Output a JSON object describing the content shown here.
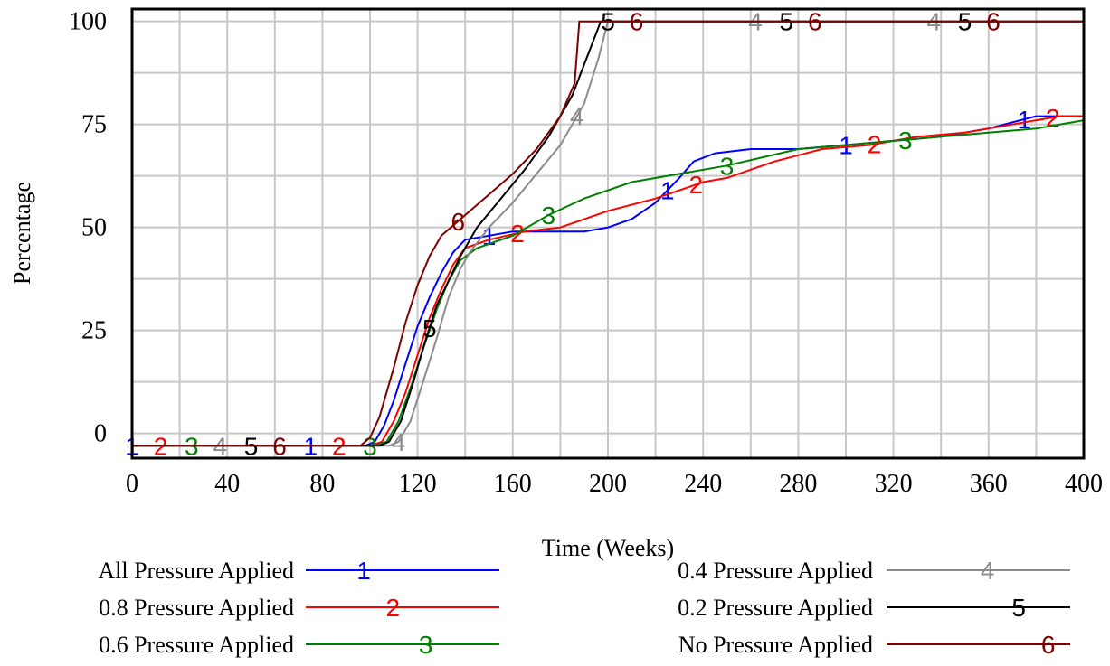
{
  "chart_data": {
    "type": "line",
    "xlabel": "Time (Weeks)",
    "ylabel": "Percentage",
    "xlim": [
      0,
      400
    ],
    "ylim": [
      -6,
      103
    ],
    "x_ticks": [
      0,
      40,
      80,
      120,
      160,
      200,
      240,
      280,
      320,
      360,
      400
    ],
    "y_ticks": [
      0,
      25,
      50,
      75,
      100
    ],
    "x_grid_step": 20,
    "y_grid_step": 12.5,
    "grid": true,
    "legend_position": "bottom",
    "series": [
      {
        "name": "All Pressure Applied",
        "marker": "1",
        "color": "#0000ff",
        "points": [
          [
            0,
            -3
          ],
          [
            98,
            -3
          ],
          [
            102,
            -2
          ],
          [
            106,
            2
          ],
          [
            110,
            8
          ],
          [
            115,
            17
          ],
          [
            120,
            26
          ],
          [
            125,
            33
          ],
          [
            130,
            39
          ],
          [
            135,
            44
          ],
          [
            140,
            47
          ],
          [
            150,
            48
          ],
          [
            160,
            49
          ],
          [
            170,
            49
          ],
          [
            190,
            49
          ],
          [
            200,
            50
          ],
          [
            210,
            52
          ],
          [
            220,
            56
          ],
          [
            230,
            62
          ],
          [
            236,
            66
          ],
          [
            245,
            68
          ],
          [
            260,
            69
          ],
          [
            280,
            69
          ],
          [
            300,
            70
          ],
          [
            320,
            71
          ],
          [
            340,
            72
          ],
          [
            360,
            74
          ],
          [
            380,
            77
          ],
          [
            400,
            77
          ]
        ],
        "marker_x": [
          0,
          75,
          150,
          225,
          300,
          375
        ]
      },
      {
        "name": "0.8 Pressure Applied",
        "marker": "2",
        "color": "#ff0000",
        "points": [
          [
            0,
            -3
          ],
          [
            100,
            -3
          ],
          [
            105,
            -2
          ],
          [
            110,
            3
          ],
          [
            115,
            10
          ],
          [
            120,
            19
          ],
          [
            125,
            28
          ],
          [
            130,
            35
          ],
          [
            135,
            41
          ],
          [
            140,
            45
          ],
          [
            150,
            47
          ],
          [
            165,
            49
          ],
          [
            180,
            50
          ],
          [
            200,
            54
          ],
          [
            220,
            57
          ],
          [
            240,
            61
          ],
          [
            250,
            62
          ],
          [
            270,
            66
          ],
          [
            290,
            69
          ],
          [
            310,
            70
          ],
          [
            330,
            72
          ],
          [
            350,
            73
          ],
          [
            370,
            75
          ],
          [
            390,
            77
          ],
          [
            400,
            77
          ]
        ],
        "marker_x": [
          12,
          87,
          162,
          237,
          312,
          387
        ]
      },
      {
        "name": "0.6 Pressure Applied",
        "marker": "3",
        "color": "#008000",
        "points": [
          [
            0,
            -3
          ],
          [
            102,
            -3
          ],
          [
            107,
            -2
          ],
          [
            112,
            3
          ],
          [
            117,
            11
          ],
          [
            122,
            20
          ],
          [
            128,
            30
          ],
          [
            133,
            37
          ],
          [
            138,
            42
          ],
          [
            145,
            45
          ],
          [
            160,
            48
          ],
          [
            175,
            53
          ],
          [
            190,
            57
          ],
          [
            210,
            61
          ],
          [
            230,
            63
          ],
          [
            250,
            65
          ],
          [
            265,
            67
          ],
          [
            280,
            69
          ],
          [
            300,
            70
          ],
          [
            320,
            71
          ],
          [
            340,
            72
          ],
          [
            360,
            73
          ],
          [
            380,
            74
          ],
          [
            400,
            76
          ]
        ],
        "marker_x": [
          25,
          100,
          175,
          250,
          325
        ]
      },
      {
        "name": "0.4 Pressure Applied",
        "marker": "4",
        "color": "#8c8c8c",
        "points": [
          [
            0,
            -3
          ],
          [
            108,
            -3
          ],
          [
            112,
            -2
          ],
          [
            117,
            3
          ],
          [
            122,
            12
          ],
          [
            128,
            23
          ],
          [
            133,
            33
          ],
          [
            138,
            40
          ],
          [
            142,
            44
          ],
          [
            150,
            50
          ],
          [
            160,
            56
          ],
          [
            170,
            63
          ],
          [
            180,
            70
          ],
          [
            190,
            80
          ],
          [
            196,
            91
          ],
          [
            200,
            100
          ],
          [
            400,
            100
          ]
        ],
        "marker_x": [
          37,
          112,
          187,
          262,
          337
        ]
      },
      {
        "name": "0.2 Pressure Applied",
        "marker": "5",
        "color": "#000000",
        "points": [
          [
            0,
            -3
          ],
          [
            104,
            -3
          ],
          [
            108,
            -2
          ],
          [
            113,
            3
          ],
          [
            118,
            12
          ],
          [
            123,
            22
          ],
          [
            128,
            31
          ],
          [
            133,
            37
          ],
          [
            138,
            43
          ],
          [
            145,
            50
          ],
          [
            155,
            57
          ],
          [
            165,
            64
          ],
          [
            175,
            72
          ],
          [
            185,
            82
          ],
          [
            193,
            94
          ],
          [
            197,
            100
          ],
          [
            400,
            100
          ]
        ],
        "marker_x": [
          50,
          125,
          200,
          275,
          350
        ]
      },
      {
        "name": "No Pressure Applied",
        "marker": "6",
        "color": "#800000",
        "points": [
          [
            0,
            -3
          ],
          [
            96,
            -3
          ],
          [
            100,
            -1
          ],
          [
            104,
            4
          ],
          [
            110,
            16
          ],
          [
            115,
            27
          ],
          [
            120,
            36
          ],
          [
            125,
            43
          ],
          [
            130,
            48
          ],
          [
            140,
            53
          ],
          [
            150,
            58
          ],
          [
            160,
            63
          ],
          [
            170,
            69
          ],
          [
            180,
            77
          ],
          [
            186,
            85
          ],
          [
            188,
            100
          ],
          [
            400,
            100
          ]
        ],
        "marker_x": [
          62,
          137,
          212,
          287,
          362
        ]
      }
    ]
  }
}
